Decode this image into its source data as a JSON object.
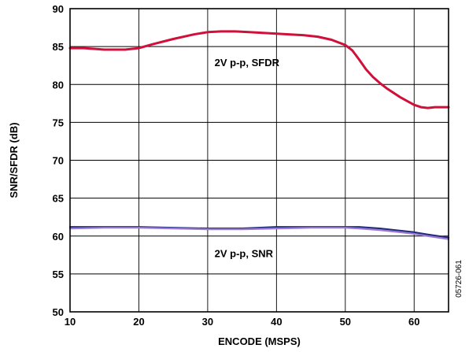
{
  "chart_data": {
    "type": "line",
    "xlabel": "ENCODE (MSPS)",
    "ylabel": "SNR/SFDR (dB)",
    "xlim": [
      10,
      65
    ],
    "ylim": [
      50,
      90
    ],
    "x_ticks": [
      10,
      20,
      30,
      40,
      50,
      60
    ],
    "y_ticks": [
      50,
      55,
      60,
      65,
      70,
      75,
      80,
      85,
      90
    ],
    "grid": true,
    "legend": "none",
    "figure_id": "05726-061",
    "series": [
      {
        "name": "2V p-p, SFDR",
        "color": "#d0103a",
        "x": [
          10,
          12,
          15,
          18,
          20,
          22,
          25,
          28,
          30,
          32,
          34,
          36,
          38,
          40,
          42,
          44,
          46,
          48,
          50,
          51,
          52,
          53,
          54,
          55,
          56,
          58,
          60,
          61,
          62,
          63,
          64,
          65
        ],
        "y": [
          84.8,
          84.8,
          84.6,
          84.6,
          84.8,
          85.3,
          86.0,
          86.6,
          86.9,
          87.0,
          87.0,
          86.9,
          86.8,
          86.7,
          86.6,
          86.5,
          86.3,
          85.9,
          85.2,
          84.5,
          83.3,
          82.0,
          81.0,
          80.2,
          79.5,
          78.3,
          77.3,
          77.0,
          76.9,
          77.0,
          77.0,
          77.0
        ]
      },
      {
        "name": "2V p-p, SNR",
        "color": "#1f2a7a",
        "x": [
          10,
          15,
          20,
          25,
          30,
          35,
          40,
          45,
          50,
          52,
          55,
          58,
          60,
          62,
          65
        ],
        "y": [
          61.2,
          61.2,
          61.2,
          61.1,
          61.0,
          61.0,
          61.2,
          61.2,
          61.2,
          61.2,
          61.0,
          60.7,
          60.5,
          60.2,
          59.8
        ]
      },
      {
        "name": "",
        "color": "#9a7ad0",
        "x": [
          10,
          15,
          20,
          25,
          30,
          35,
          40,
          45,
          50,
          52,
          55,
          58,
          60,
          62,
          65
        ],
        "y": [
          61.0,
          61.1,
          61.1,
          61.0,
          60.9,
          60.9,
          61.0,
          61.1,
          61.1,
          61.0,
          60.8,
          60.5,
          60.3,
          60.0,
          59.6
        ]
      }
    ],
    "annotations": [
      {
        "text": "2V p-p, SFDR",
        "x": 31,
        "y": 82.4
      },
      {
        "text": "2V p-p, SNR",
        "x": 31,
        "y": 57.2
      }
    ]
  }
}
